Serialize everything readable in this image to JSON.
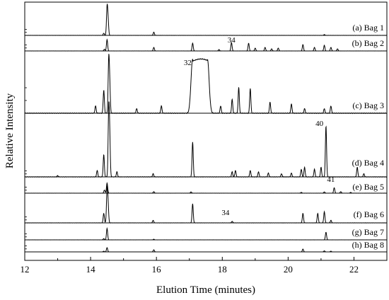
{
  "chart_data": {
    "type": "line",
    "title": "",
    "xlabel": "Elution Time (minutes)",
    "ylabel": "Relative Intensity",
    "xlim": [
      12,
      23
    ],
    "x_ticks": [
      12,
      14,
      16,
      18,
      20,
      22
    ],
    "x_tick_labels": [
      "12",
      "14",
      "16",
      "18",
      "20",
      "22"
    ],
    "grid": false,
    "legend": "none",
    "series": [
      {
        "label": "(a) Bag 1",
        "peaks": [
          [
            14.4,
            0.08
          ],
          [
            14.5,
            1.0
          ],
          [
            14.53,
            0.55
          ],
          [
            15.92,
            0.12
          ],
          [
            21.1,
            0.03
          ]
        ]
      },
      {
        "label": "(b) Bag 2",
        "peaks": [
          [
            14.42,
            0.12
          ],
          [
            14.5,
            0.8
          ],
          [
            15.92,
            0.25
          ],
          [
            17.1,
            0.55
          ],
          [
            17.9,
            0.1
          ],
          [
            18.28,
            0.6
          ],
          [
            18.8,
            0.55
          ],
          [
            19.0,
            0.2
          ],
          [
            19.3,
            0.25
          ],
          [
            19.5,
            0.15
          ],
          [
            19.7,
            0.2
          ],
          [
            20.45,
            0.45
          ],
          [
            20.8,
            0.25
          ],
          [
            21.1,
            0.4
          ],
          [
            21.3,
            0.25
          ],
          [
            21.5,
            0.15
          ]
        ],
        "annotations": [
          {
            "text": "34",
            "x": 18.28
          }
        ]
      },
      {
        "label": "(c) Bag 3",
        "peaks": [
          [
            14.15,
            0.08
          ],
          [
            14.4,
            0.25
          ],
          [
            14.55,
            0.55
          ],
          [
            14.58,
            0.3
          ],
          [
            15.4,
            0.05
          ],
          [
            16.15,
            0.08
          ],
          [
            17.95,
            0.08
          ],
          [
            18.3,
            0.15
          ],
          [
            18.5,
            0.28
          ],
          [
            18.85,
            0.27
          ],
          [
            19.45,
            0.12
          ],
          [
            20.1,
            0.1
          ],
          [
            20.5,
            0.05
          ],
          [
            21.1,
            0.05
          ],
          [
            21.3,
            0.08
          ]
        ],
        "plateau": {
          "start": 17.1,
          "end": 17.55,
          "height": 0.59
        },
        "annotations": [
          {
            "text": "32",
            "x": 16.95
          }
        ]
      },
      {
        "label": "(d) Bag 4",
        "peaks": [
          [
            13.0,
            0.02
          ],
          [
            14.2,
            0.1
          ],
          [
            14.4,
            0.35
          ],
          [
            14.55,
            1.0
          ],
          [
            14.58,
            0.6
          ],
          [
            14.8,
            0.08
          ],
          [
            15.9,
            0.05
          ],
          [
            17.1,
            0.55
          ],
          [
            18.3,
            0.08
          ],
          [
            18.4,
            0.1
          ],
          [
            18.85,
            0.1
          ],
          [
            19.1,
            0.08
          ],
          [
            19.4,
            0.06
          ],
          [
            19.8,
            0.05
          ],
          [
            20.1,
            0.06
          ],
          [
            20.4,
            0.12
          ],
          [
            20.5,
            0.15
          ],
          [
            20.8,
            0.12
          ],
          [
            21.0,
            0.15
          ],
          [
            21.15,
            0.8
          ],
          [
            22.1,
            0.15
          ],
          [
            22.3,
            0.05
          ]
        ],
        "annotations": [
          {
            "text": "40",
            "x": 20.95
          }
        ]
      },
      {
        "label": "(e) Bag 5",
        "peaks": [
          [
            14.42,
            0.2
          ],
          [
            14.5,
            0.65
          ],
          [
            15.92,
            0.1
          ],
          [
            17.05,
            0.08
          ],
          [
            20.4,
            0.05
          ],
          [
            21.1,
            0.08
          ],
          [
            21.4,
            0.35
          ],
          [
            21.6,
            0.1
          ],
          [
            21.9,
            0.05
          ]
        ],
        "annotations": [
          {
            "text": "41",
            "x": 21.3
          }
        ]
      },
      {
        "label": "(f) Bag 6",
        "peaks": [
          [
            14.4,
            0.3
          ],
          [
            14.5,
            1.0
          ],
          [
            14.53,
            0.55
          ],
          [
            15.9,
            0.08
          ],
          [
            17.1,
            0.6
          ],
          [
            18.3,
            0.05
          ],
          [
            20.45,
            0.3
          ],
          [
            20.9,
            0.3
          ],
          [
            21.1,
            0.35
          ],
          [
            21.3,
            0.08
          ]
        ],
        "annotations": [
          {
            "text": "34",
            "x": 18.1
          }
        ]
      },
      {
        "label": "(g) Bag 7",
        "peaks": [
          [
            14.4,
            0.1
          ],
          [
            14.5,
            0.9
          ],
          [
            15.92,
            0.05
          ],
          [
            21.15,
            0.6
          ]
        ]
      },
      {
        "label": "(h) Bag 8",
        "peaks": [
          [
            14.4,
            0.1
          ],
          [
            14.5,
            0.6
          ],
          [
            15.92,
            0.3
          ],
          [
            20.45,
            0.4
          ],
          [
            21.1,
            0.15
          ],
          [
            21.3,
            0.1
          ]
        ]
      }
    ]
  }
}
